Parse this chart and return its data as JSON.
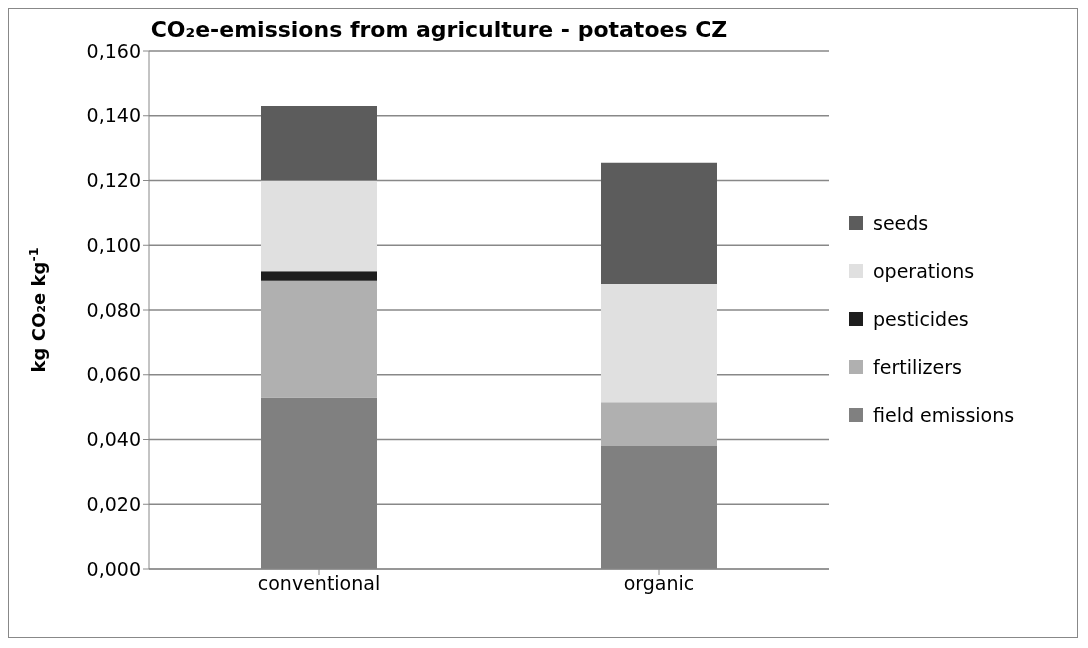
{
  "chart_data": {
    "type": "bar",
    "stacked": true,
    "title": "CO₂e-emissions from agriculture - potatoes CZ",
    "ylabel": "kg CO₂e kg$^{-1}$",
    "categories": [
      "conventional",
      "organic"
    ],
    "series": [
      {
        "name": "field emissions",
        "color": "#808080",
        "values": [
          0.053,
          0.038
        ]
      },
      {
        "name": "fertilizers",
        "color": "#b0b0b0",
        "values": [
          0.036,
          0.0135
        ]
      },
      {
        "name": "pesticides",
        "color": "#1e1e1e",
        "values": [
          0.003,
          0
        ]
      },
      {
        "name": "operations",
        "color": "#e0e0e0",
        "values": [
          0.028,
          0.0365
        ]
      },
      {
        "name": "seeds",
        "color": "#5c5c5c",
        "values": [
          0.023,
          0.0375
        ]
      }
    ],
    "ylim": [
      0,
      0.16
    ],
    "yticks": [
      {
        "value": 0,
        "label": "0,000"
      },
      {
        "value": 0.02,
        "label": "0,020"
      },
      {
        "value": 0.04,
        "label": "0,040"
      },
      {
        "value": 0.06,
        "label": "0,060"
      },
      {
        "value": 0.08,
        "label": "0,080"
      },
      {
        "value": 0.1,
        "label": "0,100"
      },
      {
        "value": 0.12,
        "label": "0,120"
      },
      {
        "value": 0.14,
        "label": "0,140"
      },
      {
        "value": 0.16,
        "label": "0,160"
      }
    ],
    "grid": "y",
    "legend": "right"
  }
}
